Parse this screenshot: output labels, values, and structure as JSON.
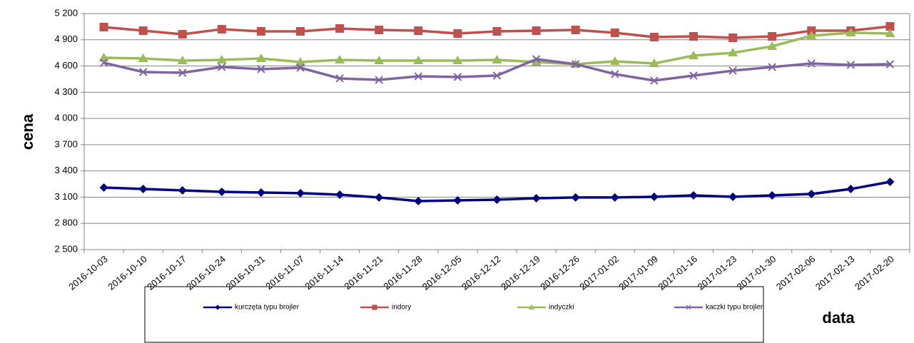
{
  "chart_data": {
    "type": "line",
    "y_label": "cena",
    "x_label": "data",
    "categories": [
      "2016-10-03",
      "2016-10-10",
      "2016-10-17",
      "2016-10-24",
      "2016-10-31",
      "2016-11-07",
      "2016-11-14",
      "2016-11-21",
      "2016-11-28",
      "2016-12-05",
      "2016-12-12",
      "2016-12-19",
      "2016-12-26",
      "2017-01-02",
      "2017-01-09",
      "2017-01-16",
      "2017-01-23",
      "2017-01-30",
      "2017-02-06",
      "2017-02-13",
      "2017-02-20"
    ],
    "series": [
      {
        "name": "kurczęta typu brojler",
        "color": "#000080",
        "marker": "diamond",
        "values": [
          3210,
          3193,
          3177,
          3161,
          3153,
          3145,
          3128,
          3096,
          3055,
          3063,
          3071,
          3087,
          3096,
          3096,
          3104,
          3120,
          3104,
          3120,
          3136,
          3193,
          3275
        ]
      },
      {
        "name": "indory",
        "color": "#c0504d",
        "marker": "square",
        "values": [
          5045,
          5004,
          4963,
          5021,
          4996,
          4996,
          5029,
          5012,
          5004,
          4972,
          4996,
          5004,
          5012,
          4980,
          4931,
          4939,
          4923,
          4939,
          5004,
          5004,
          5053
        ]
      },
      {
        "name": "indyczki",
        "color": "#9bbb59",
        "marker": "triangle",
        "values": [
          4694,
          4686,
          4662,
          4670,
          4686,
          4645,
          4670,
          4662,
          4662,
          4662,
          4670,
          4645,
          4621,
          4653,
          4629,
          4719,
          4751,
          4825,
          4947,
          4980,
          4972
        ]
      },
      {
        "name": "kaczki typu brojler",
        "color": "#8064a2",
        "marker": "x",
        "values": [
          4637,
          4531,
          4523,
          4588,
          4564,
          4580,
          4458,
          4441,
          4482,
          4474,
          4490,
          4678,
          4621,
          4507,
          4433,
          4490,
          4547,
          4588,
          4629,
          4613,
          4621
        ]
      }
    ],
    "ylim": [
      2500,
      5200
    ],
    "yticks": [
      {
        "value": 2500,
        "label": "2 500"
      },
      {
        "value": 2800,
        "label": "2 800"
      },
      {
        "value": 3100,
        "label": "3 100"
      },
      {
        "value": 3400,
        "label": "3 400"
      },
      {
        "value": 3700,
        "label": "3 700"
      },
      {
        "value": 4000,
        "label": "4 000"
      },
      {
        "value": 4300,
        "label": "4 300"
      },
      {
        "value": 4600,
        "label": "4 600"
      },
      {
        "value": 4900,
        "label": "4 900"
      },
      {
        "value": 5200,
        "label": "5 200"
      }
    ],
    "grid": true
  }
}
